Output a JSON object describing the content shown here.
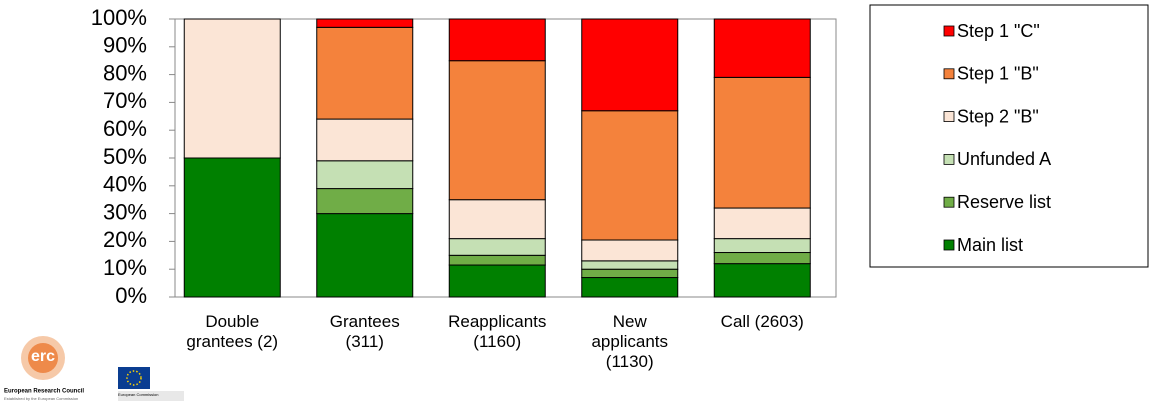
{
  "chart_data": {
    "type": "stacked_bar",
    "categories": [
      "Double grantees (2)",
      "Grantees (311)",
      "Reapplicants (1160)",
      "New applicants (1130)",
      "Call (2603)"
    ],
    "series": [
      {
        "name": "Main list",
        "color": "#008000",
        "values": [
          50,
          30,
          11.5,
          7,
          12
        ]
      },
      {
        "name": "Reserve list",
        "color": "#70ad47",
        "values": [
          0,
          9,
          3.5,
          3,
          4
        ]
      },
      {
        "name": "Unfunded A",
        "color": "#c5e0b4",
        "values": [
          0,
          10,
          6,
          3,
          5
        ]
      },
      {
        "name": "Step 2 \"B\"",
        "color": "#fbe5d6",
        "values": [
          50,
          15,
          14,
          7.5,
          11
        ]
      },
      {
        "name": "Step 1 \"B\"",
        "color": "#f4823c",
        "values": [
          0,
          33,
          50,
          46.5,
          47
        ]
      },
      {
        "name": "Step 1 \"C\"",
        "color": "#ff0000",
        "values": [
          0,
          3,
          15,
          33,
          21
        ]
      }
    ],
    "ylim": [
      0,
      100
    ],
    "yticks": [
      {
        "value": 0,
        "label": "0%"
      },
      {
        "value": 10,
        "label": "10%"
      },
      {
        "value": 20,
        "label": "20%"
      },
      {
        "value": 30,
        "label": "30%"
      },
      {
        "value": 40,
        "label": "40%"
      },
      {
        "value": 50,
        "label": "50%"
      },
      {
        "value": 60,
        "label": "60%"
      },
      {
        "value": 70,
        "label": "70%"
      },
      {
        "value": 80,
        "label": "80%"
      },
      {
        "value": 90,
        "label": "90%"
      },
      {
        "value": 100,
        "label": "100%"
      }
    ],
    "legend": "right"
  },
  "logos": {
    "erc": "erc",
    "erc_name": "European Research Council",
    "erc_note": "Established by the European Commission",
    "ec_name": "European Commission"
  }
}
